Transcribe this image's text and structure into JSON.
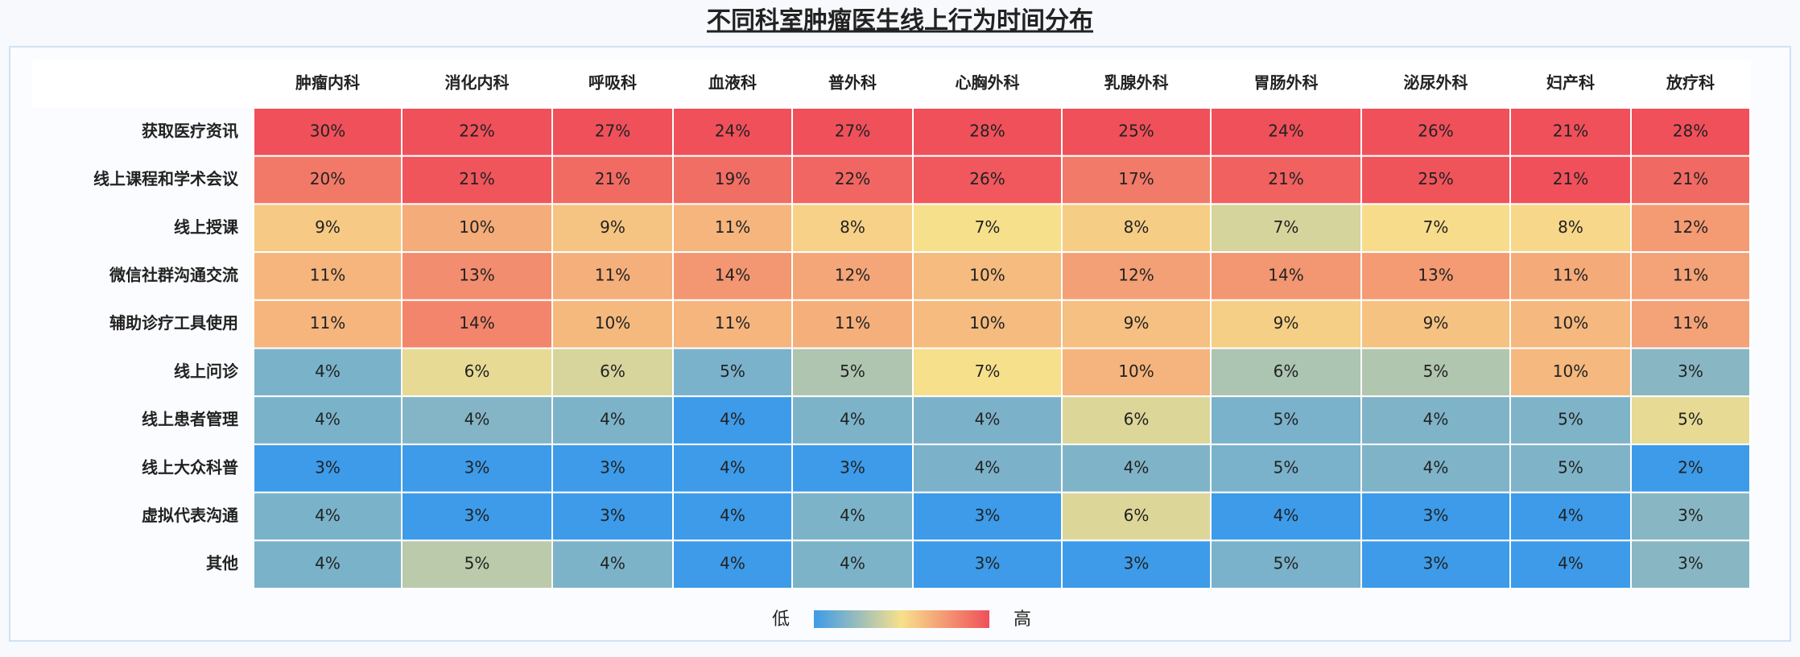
{
  "chart_data": {
    "type": "heatmap",
    "title": "不同科室肿瘤医生线上行为时间分布",
    "x": [
      "肿瘤内科",
      "消化内科",
      "呼吸科",
      "血液科",
      "普外科",
      "心胸外科",
      "乳腺外科",
      "胃肠外科",
      "泌尿外科",
      "妇产科",
      "放疗科"
    ],
    "y": [
      "获取医疗资讯",
      "线上课程和学术会议",
      "线上授课",
      "微信社群沟通交流",
      "辅助诊疗工具使用",
      "线上问诊",
      "线上患者管理",
      "线上大众科普",
      "虚拟代表沟通",
      "其他"
    ],
    "values": [
      [
        30,
        22,
        27,
        24,
        27,
        28,
        25,
        24,
        26,
        21,
        28
      ],
      [
        20,
        21,
        21,
        19,
        22,
        26,
        17,
        21,
        25,
        21,
        21
      ],
      [
        9,
        10,
        9,
        11,
        8,
        7,
        8,
        7,
        7,
        8,
        12
      ],
      [
        11,
        13,
        11,
        14,
        12,
        10,
        12,
        14,
        13,
        11,
        11
      ],
      [
        11,
        14,
        10,
        11,
        11,
        10,
        9,
        9,
        9,
        10,
        11
      ],
      [
        4,
        6,
        6,
        5,
        5,
        7,
        10,
        6,
        5,
        10,
        3
      ],
      [
        4,
        4,
        4,
        4,
        4,
        4,
        6,
        5,
        4,
        5,
        5
      ],
      [
        3,
        3,
        3,
        4,
        3,
        4,
        4,
        5,
        4,
        5,
        2
      ],
      [
        4,
        3,
        3,
        4,
        4,
        3,
        6,
        4,
        3,
        4,
        3
      ],
      [
        4,
        5,
        4,
        4,
        4,
        3,
        3,
        5,
        3,
        4,
        3
      ]
    ],
    "value_labels": [
      [
        "30%",
        "22%",
        "27%",
        "24%",
        "27%",
        "28%",
        "25%",
        "24%",
        "26%",
        "21%",
        "28%"
      ],
      [
        "20%",
        "21%",
        "21%",
        "19%",
        "22%",
        "26%",
        "17%",
        "21%",
        "25%",
        "21%",
        "21%"
      ],
      [
        "9%",
        "10%",
        "9%",
        "11%",
        "8%",
        "7%",
        "8%",
        "7%",
        "7%",
        "8%",
        "12%"
      ],
      [
        "11%",
        "13%",
        "11%",
        "14%",
        "12%",
        "10%",
        "12%",
        "14%",
        "13%",
        "11%",
        "11%"
      ],
      [
        "11%",
        "14%",
        "10%",
        "11%",
        "11%",
        "10%",
        "9%",
        "9%",
        "9%",
        "10%",
        "11%"
      ],
      [
        "4%",
        "6%",
        "6%",
        "5%",
        "5%",
        "7%",
        "10%",
        "6%",
        "5%",
        "10%",
        "3%"
      ],
      [
        "4%",
        "4%",
        "4%",
        "4%",
        "4%",
        "4%",
        "6%",
        "5%",
        "4%",
        "5%",
        "5%"
      ],
      [
        "3%",
        "3%",
        "3%",
        "4%",
        "3%",
        "4%",
        "4%",
        "5%",
        "4%",
        "5%",
        "2%"
      ],
      [
        "4%",
        "3%",
        "3%",
        "4%",
        "4%",
        "3%",
        "6%",
        "4%",
        "3%",
        "4%",
        "3%"
      ],
      [
        "4%",
        "5%",
        "4%",
        "4%",
        "4%",
        "3%",
        "3%",
        "5%",
        "3%",
        "4%",
        "3%"
      ]
    ],
    "colors": [
      "#3d9be9",
      "#f7e08c",
      "#f0505a"
    ],
    "legend_low": "低",
    "legend_high": "高"
  }
}
